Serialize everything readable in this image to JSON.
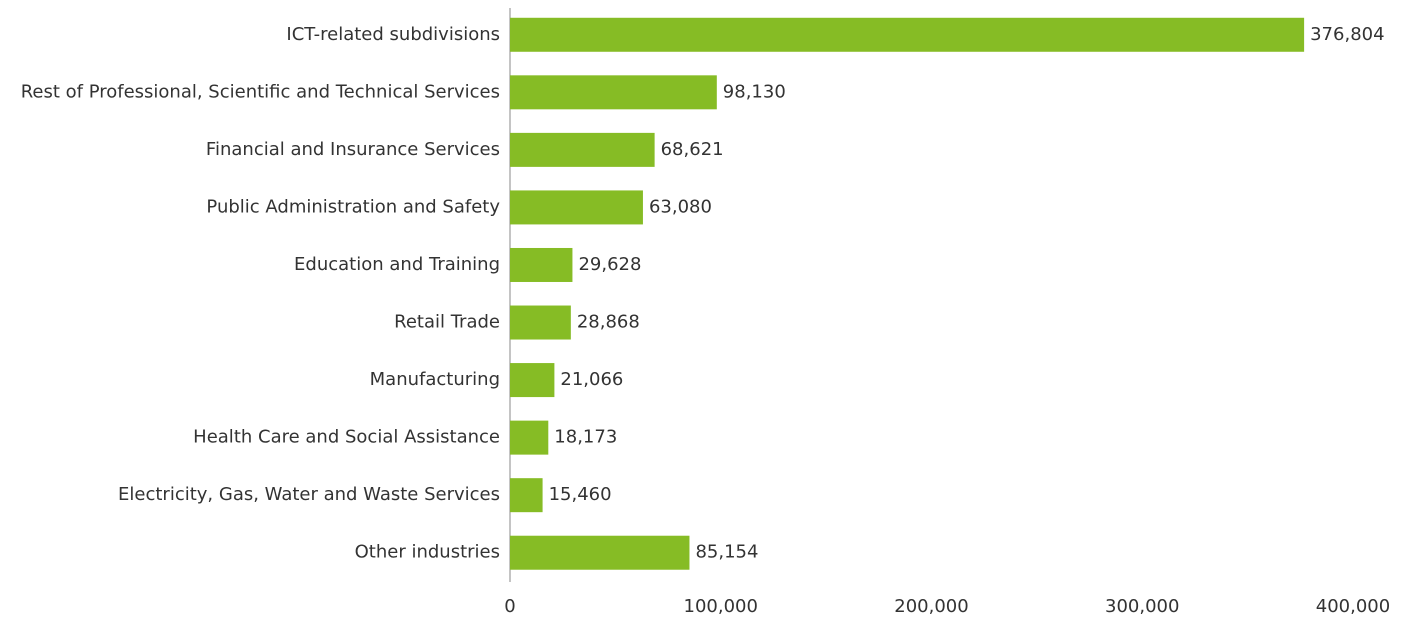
{
  "chart_data": {
    "type": "bar",
    "orientation": "horizontal",
    "categories": [
      "ICT-related subdivisions",
      "Rest of Professional, Scientific and Technical Services",
      "Financial and Insurance Services",
      "Public Administration and Safety",
      "Education and Training",
      "Retail Trade",
      "Manufacturing",
      "Health Care and Social Assistance",
      "Electricity, Gas, Water and Waste Services",
      "Other industries"
    ],
    "values": [
      376804,
      98130,
      68621,
      63080,
      29628,
      28868,
      21066,
      18173,
      15460,
      85154
    ],
    "value_labels": [
      "376,804",
      "98,130",
      "68,621",
      "63,080",
      "29,628",
      "28,868",
      "21,066",
      "18,173",
      "15,460",
      "85,154"
    ],
    "color": "#86bc25",
    "xlim": [
      0,
      400000
    ],
    "xticks": [
      0,
      {
        "value": 100000,
        "label": "100,000"
      },
      {
        "value": 200000,
        "label": "200,000"
      },
      {
        "value": 300000,
        "label": "300,000"
      },
      {
        "value": 400000,
        "label": "400,000"
      }
    ],
    "grid": false
  }
}
